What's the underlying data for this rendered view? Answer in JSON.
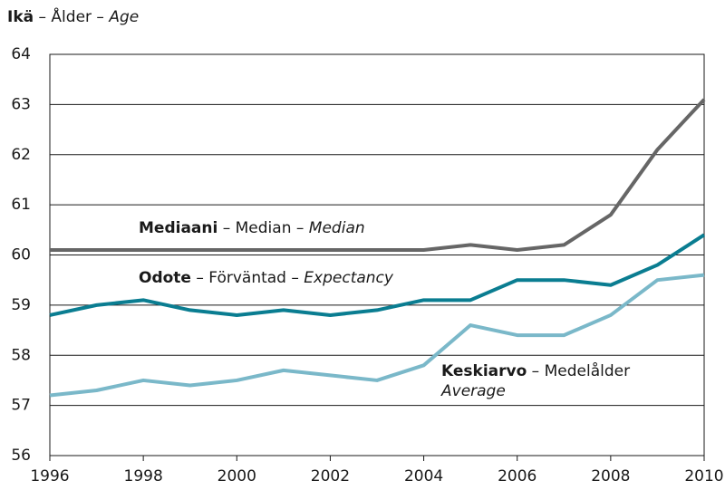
{
  "chart_data": {
    "type": "line",
    "ylabel": {
      "fi": "Ikä",
      "sv": "Ålder",
      "en": "Age"
    },
    "x": [
      1996,
      1997,
      1998,
      1999,
      2000,
      2001,
      2002,
      2003,
      2004,
      2005,
      2006,
      2007,
      2008,
      2009,
      2010
    ],
    "xlim": [
      1996,
      2010
    ],
    "xticks": [
      1996,
      1998,
      2000,
      2002,
      2004,
      2006,
      2008,
      2010
    ],
    "ylim": [
      56,
      64
    ],
    "yticks": [
      56,
      57,
      58,
      59,
      60,
      61,
      62,
      63,
      64
    ],
    "grid": true,
    "series": [
      {
        "name": "Mediaani",
        "name_sv": "Median",
        "name_en": "Median",
        "color": "#666666",
        "values": [
          60.1,
          60.1,
          60.1,
          60.1,
          60.1,
          60.1,
          60.1,
          60.1,
          60.1,
          60.2,
          60.1,
          60.2,
          60.8,
          62.1,
          63.1
        ]
      },
      {
        "name": "Odote",
        "name_sv": "Förväntad",
        "name_en": "Expectancy",
        "color": "#0a7d91",
        "values": [
          58.8,
          59.0,
          59.1,
          58.9,
          58.8,
          58.9,
          58.8,
          58.9,
          59.1,
          59.1,
          59.5,
          59.5,
          59.4,
          59.8,
          60.4
        ]
      },
      {
        "name": "Keskiarvo",
        "name_sv": "Medelålder",
        "name_en": "Average",
        "color": "#7ab8c9",
        "values": [
          57.2,
          57.3,
          57.5,
          57.4,
          57.5,
          57.7,
          57.6,
          57.5,
          57.8,
          58.6,
          58.4,
          58.4,
          58.8,
          59.5,
          59.6
        ]
      }
    ]
  }
}
